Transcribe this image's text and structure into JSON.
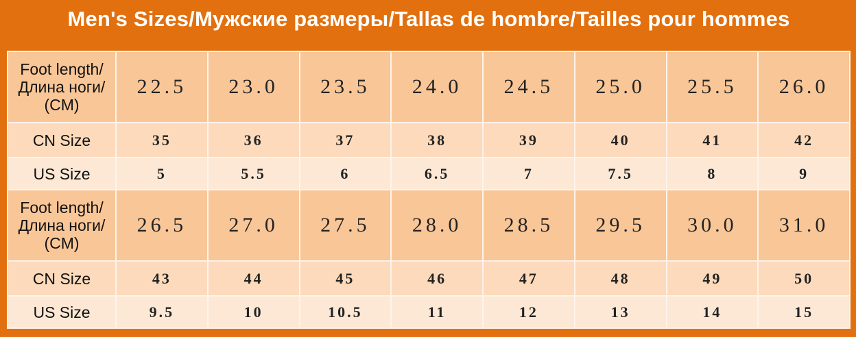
{
  "table": {
    "title": "Men's Sizes/Мужские размеры/Tallas de hombre/Tailles pour hommes",
    "rows": [
      {
        "kind": "foot",
        "label": [
          "Foot length/",
          "Длина ноги/",
          "(CM)"
        ],
        "cells": [
          "22.5",
          "23.0",
          "23.5",
          "24.0",
          "24.5",
          "25.0",
          "25.5",
          "26.0"
        ]
      },
      {
        "kind": "cn",
        "label": [
          "CN Size"
        ],
        "cells": [
          "35",
          "36",
          "37",
          "38",
          "39",
          "40",
          "41",
          "42"
        ]
      },
      {
        "kind": "us",
        "label": [
          "US Size"
        ],
        "cells": [
          "5",
          "5.5",
          "6",
          "6.5",
          "7",
          "7.5",
          "8",
          "9"
        ]
      },
      {
        "kind": "foot",
        "label": [
          "Foot length/",
          "Длина ноги/",
          "(CM)"
        ],
        "cells": [
          "26.5",
          "27.0",
          "27.5",
          "28.0",
          "28.5",
          "29.5",
          "30.0",
          "31.0"
        ]
      },
      {
        "kind": "cn",
        "label": [
          "CN Size"
        ],
        "cells": [
          "43",
          "44",
          "45",
          "46",
          "47",
          "48",
          "49",
          "50"
        ]
      },
      {
        "kind": "us",
        "label": [
          "US Size"
        ],
        "cells": [
          "9.5",
          "10",
          "10.5",
          "11",
          "12",
          "13",
          "14",
          "15"
        ]
      }
    ]
  }
}
